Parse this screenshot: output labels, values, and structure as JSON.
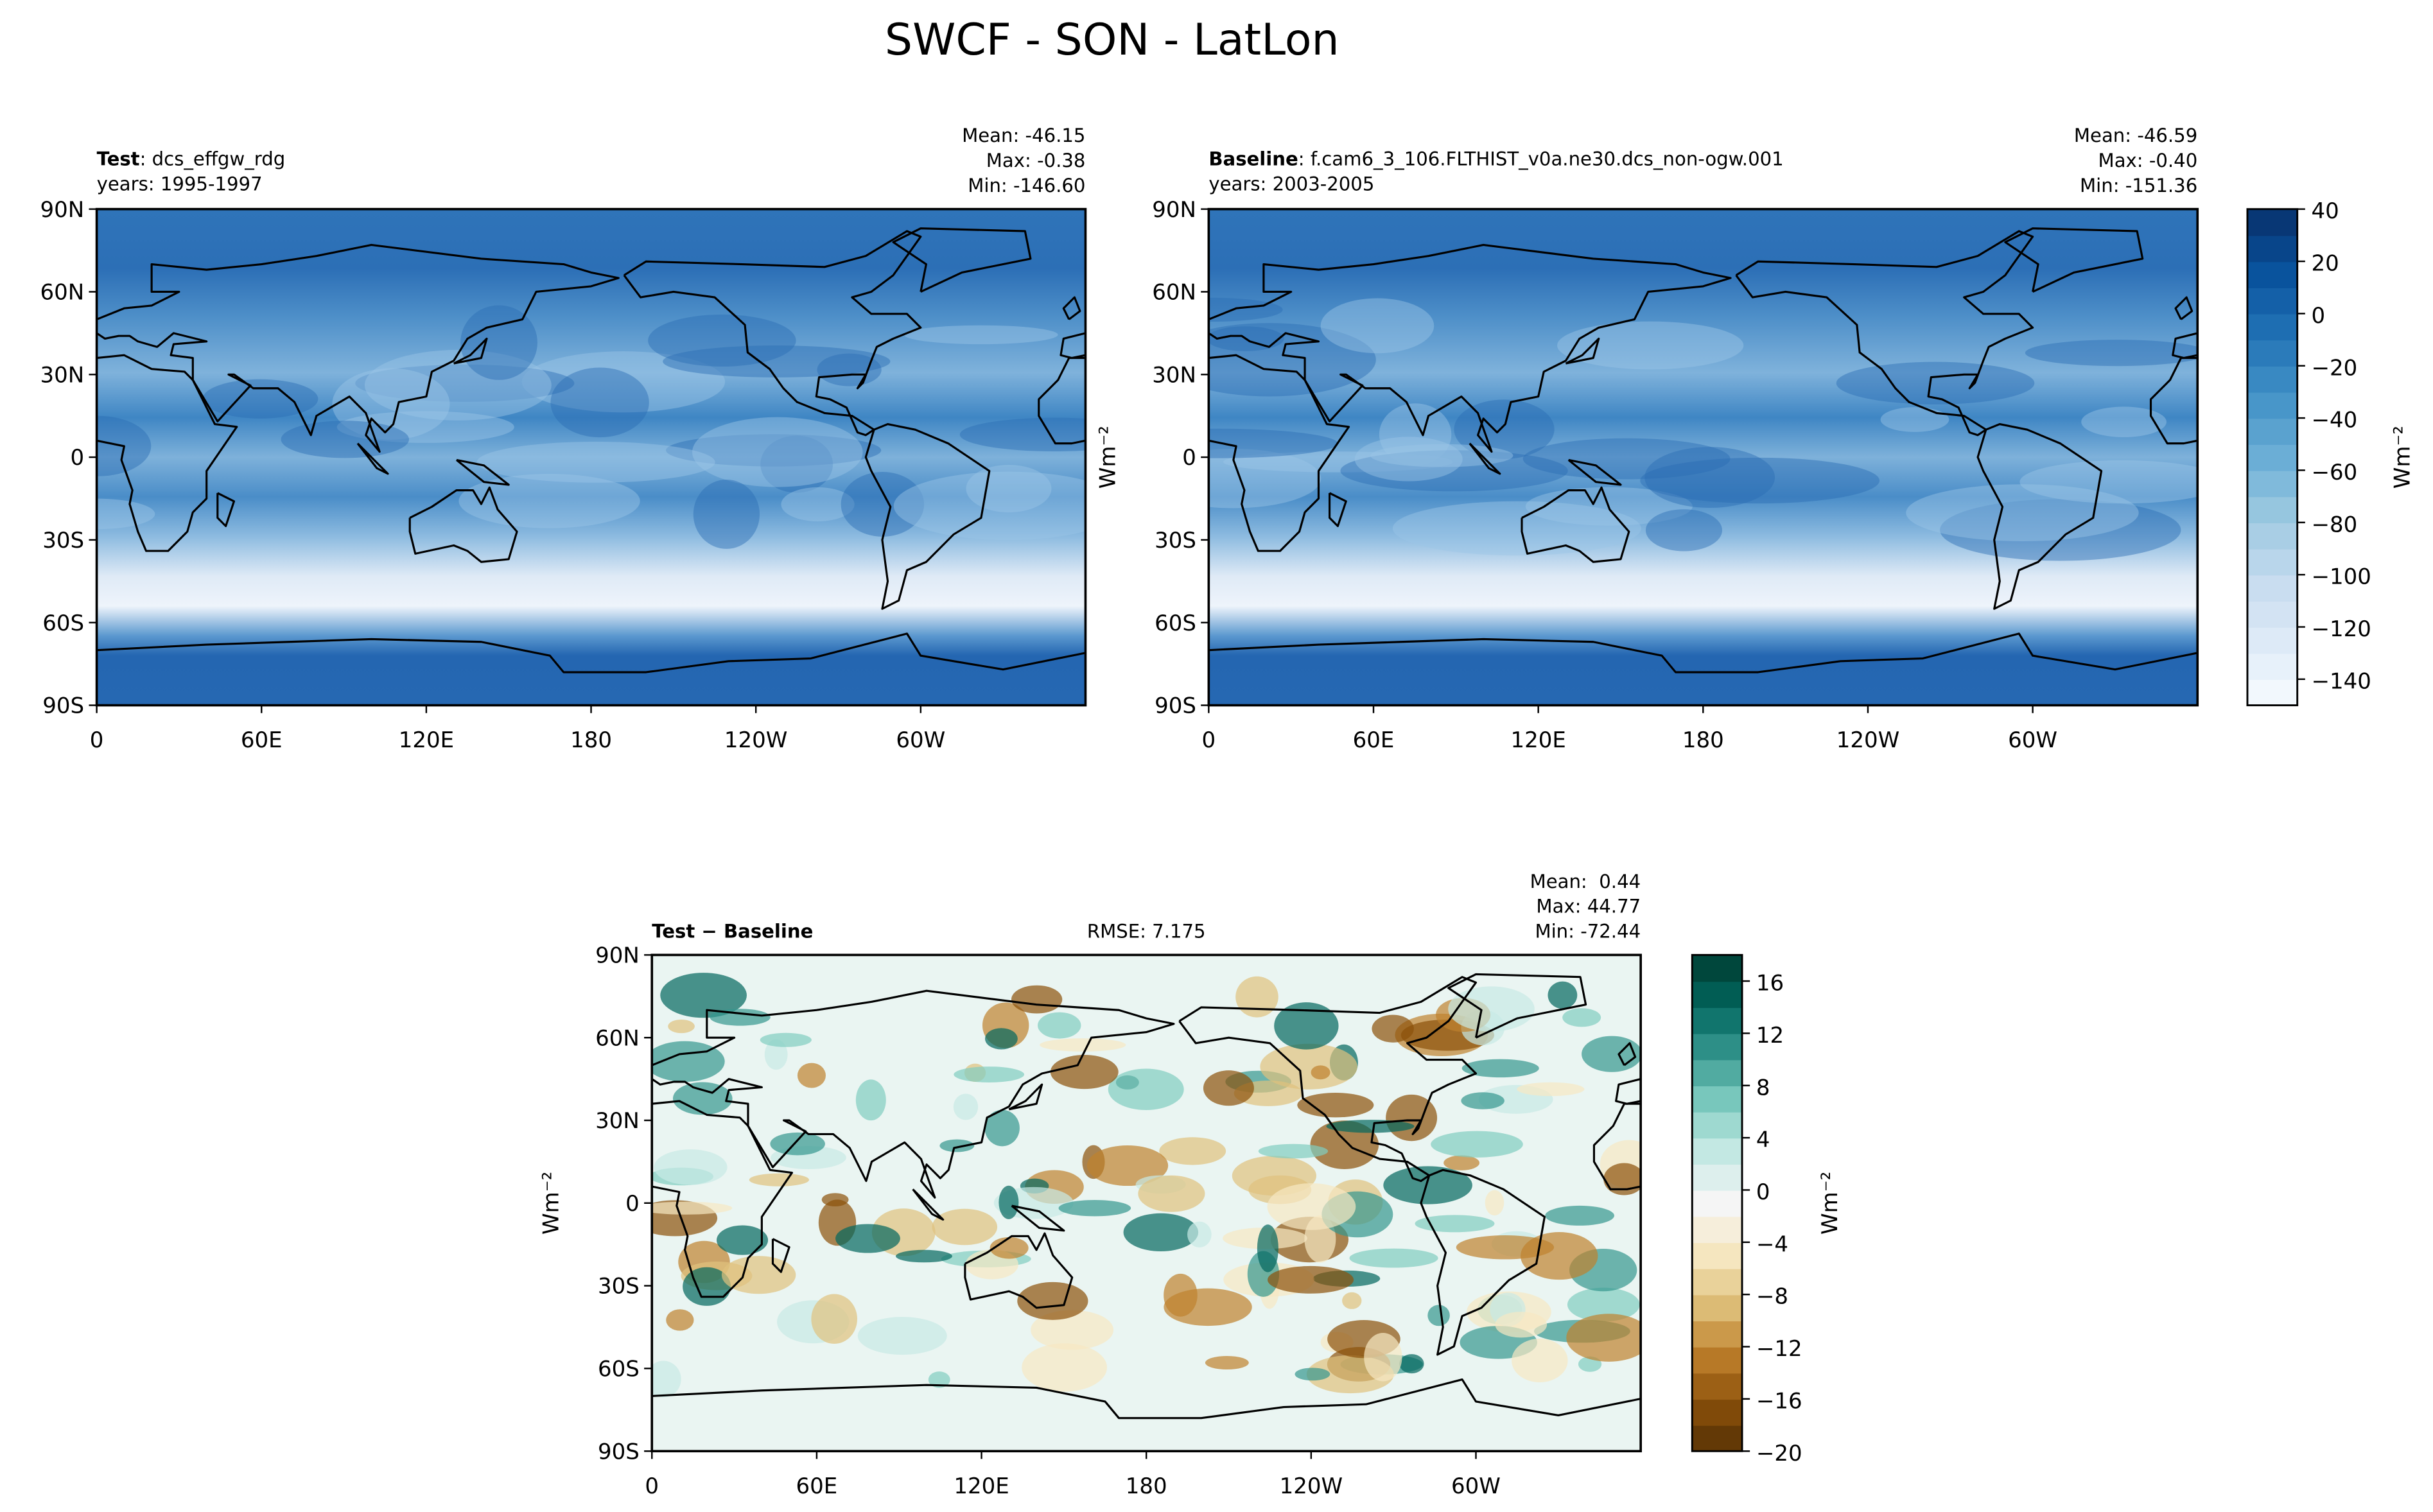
{
  "title": "SWCF - SON - LatLon",
  "chart_data": [
    {
      "type": "contour_map",
      "label": "Test",
      "case": ": dcs_effgw_rdg",
      "years": "years: 1995-1997",
      "stats": [
        "Mean: -46.15",
        "Max: -0.38",
        "Min: -146.60"
      ],
      "xlim": [
        0,
        360
      ],
      "ylim": [
        -90,
        90
      ],
      "xticks": [
        0,
        {
          "value": 60,
          "label": "60E"
        },
        {
          "value": 120,
          "label": "120E"
        },
        180,
        {
          "value": 240,
          "label": "120W"
        },
        {
          "value": 300,
          "label": "60W"
        }
      ],
      "yticks": [
        {
          "value": -90,
          "label": "90S"
        },
        {
          "value": -60,
          "label": "60S"
        },
        {
          "value": -30,
          "label": "30S"
        },
        0,
        {
          "value": 30,
          "label": "30N"
        },
        {
          "value": 60,
          "label": "60N"
        },
        {
          "value": 90,
          "label": "90N"
        }
      ]
    },
    {
      "type": "contour_map",
      "label": "Baseline",
      "case": ": f.cam6_3_106.FLTHIST_v0a.ne30.dcs_non-ogw.001",
      "years": "years: 2003-2005",
      "stats": [
        "Mean: -46.59",
        "Max: -0.40",
        "Min: -151.36"
      ],
      "ylabel": "Wm⁻²",
      "xlim": [
        0,
        360
      ],
      "ylim": [
        -90,
        90
      ],
      "xticks": [
        0,
        {
          "value": 60,
          "label": "60E"
        },
        {
          "value": 120,
          "label": "120E"
        },
        180,
        {
          "value": 240,
          "label": "120W"
        },
        {
          "value": 300,
          "label": "60W"
        }
      ],
      "yticks": [
        {
          "value": -90,
          "label": "90S"
        },
        {
          "value": -60,
          "label": "60S"
        },
        {
          "value": -30,
          "label": "30S"
        },
        0,
        {
          "value": 30,
          "label": "30N"
        },
        {
          "value": 60,
          "label": "60N"
        },
        {
          "value": 90,
          "label": "90N"
        }
      ],
      "colorbar": {
        "label": "Wm⁻²",
        "lim": [
          -150,
          40
        ],
        "step": 10,
        "colors": [
          "#f7fbff",
          "#deebf7",
          "#c6dbef",
          "#9ecae1",
          "#6baed6",
          "#4292c6",
          "#2171b5",
          "#08519c",
          "#08306b"
        ],
        "ticks": [
          40,
          20,
          0,
          {
            "value": -20,
            "label": "−20"
          },
          {
            "value": -40,
            "label": "−40"
          },
          {
            "value": -60,
            "label": "−60"
          },
          {
            "value": -80,
            "label": "−80"
          },
          {
            "value": -100,
            "label": "−100"
          },
          {
            "value": -120,
            "label": "−120"
          },
          {
            "value": -140,
            "label": "−140"
          }
        ]
      }
    },
    {
      "type": "difference_map",
      "label": "Test − Baseline",
      "rmse": "RMSE: 7.175",
      "stats": [
        "Mean:  0.44",
        "Max: 44.77",
        "Min: -72.44"
      ],
      "ylabel": "Wm⁻²",
      "xlim": [
        0,
        360
      ],
      "ylim": [
        -90,
        90
      ],
      "xticks": [
        0,
        {
          "value": 60,
          "label": "60E"
        },
        {
          "value": 120,
          "label": "120E"
        },
        180,
        {
          "value": 240,
          "label": "120W"
        },
        {
          "value": 300,
          "label": "60W"
        }
      ],
      "yticks": [
        {
          "value": -90,
          "label": "90S"
        },
        {
          "value": -60,
          "label": "60S"
        },
        {
          "value": -30,
          "label": "30S"
        },
        0,
        {
          "value": 30,
          "label": "30N"
        },
        {
          "value": 60,
          "label": "60N"
        },
        {
          "value": 90,
          "label": "90N"
        }
      ],
      "colorbar": {
        "label": "Wm⁻²",
        "lim": [
          -20,
          18
        ],
        "step": 2,
        "colors": [
          "#543005",
          "#8c510a",
          "#bf812d",
          "#dfc27d",
          "#f6e8c3",
          "#f5f5f5",
          "#c7eae5",
          "#80cdc1",
          "#35978f",
          "#01665e",
          "#003c30"
        ],
        "ticks": [
          16,
          12,
          8,
          4,
          0,
          {
            "value": -4,
            "label": "−4"
          },
          {
            "value": -8,
            "label": "−8"
          },
          {
            "value": -12,
            "label": "−12"
          },
          {
            "value": -16,
            "label": "−16"
          },
          {
            "value": -20,
            "label": "−20"
          }
        ]
      }
    }
  ]
}
